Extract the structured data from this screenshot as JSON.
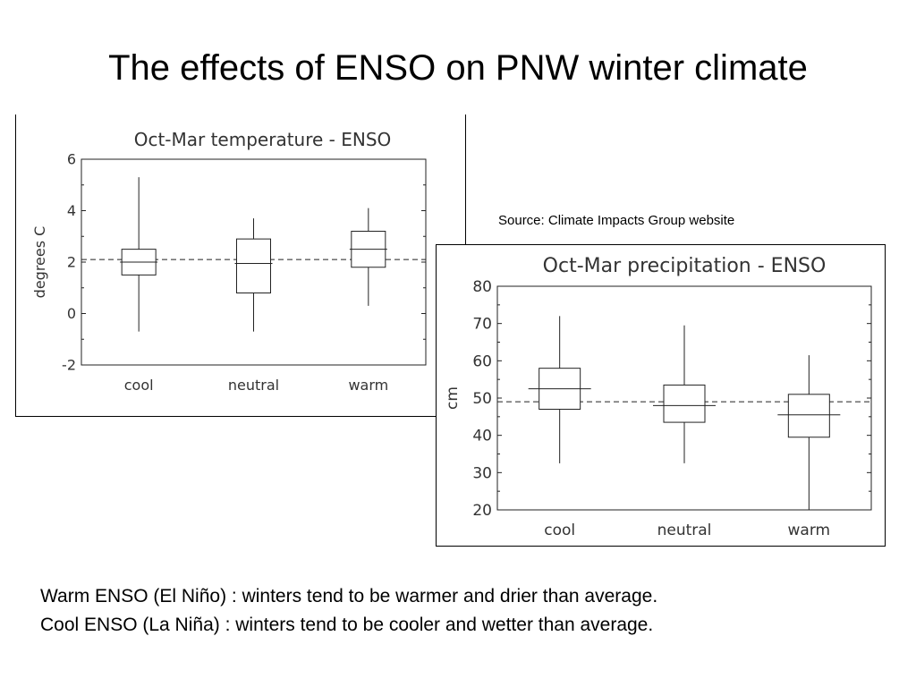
{
  "slide": {
    "title": "The effects of ENSO on PNW winter climate",
    "source_note": "Source: Climate Impacts Group website",
    "caption_lines": [
      "Warm ENSO (El Niño) : winters tend to be warmer and drier than average.",
      "Cool ENSO  (La Niña) : winters tend to be cooler and wetter than average."
    ]
  },
  "chart_data": [
    {
      "type": "boxplot",
      "title": "Oct-Mar temperature - ENSO",
      "ylabel": "degrees C",
      "categories": [
        "cool",
        "neutral",
        "warm"
      ],
      "ylim": [
        -2,
        6
      ],
      "yticks": [
        -2,
        0,
        2,
        4,
        6
      ],
      "reference_line": 2.1,
      "boxes": [
        {
          "category": "cool",
          "min": -0.7,
          "q1": 1.5,
          "median": 2.0,
          "q3": 2.5,
          "max": 5.3
        },
        {
          "category": "neutral",
          "min": -0.7,
          "q1": 0.8,
          "median": 1.95,
          "q3": 2.9,
          "max": 3.7
        },
        {
          "category": "warm",
          "min": 0.3,
          "q1": 1.8,
          "median": 2.5,
          "q3": 3.2,
          "max": 4.1
        }
      ]
    },
    {
      "type": "boxplot",
      "title": "Oct-Mar precipitation - ENSO",
      "ylabel": "cm",
      "categories": [
        "cool",
        "neutral",
        "warm"
      ],
      "ylim": [
        20,
        80
      ],
      "yticks": [
        20,
        30,
        40,
        50,
        60,
        70,
        80
      ],
      "reference_line": 49,
      "boxes": [
        {
          "category": "cool",
          "min": 32.5,
          "q1": 47,
          "median": 52.5,
          "q3": 58,
          "max": 72
        },
        {
          "category": "neutral",
          "min": 32.5,
          "q1": 43.5,
          "median": 48,
          "q3": 53.5,
          "max": 69.5
        },
        {
          "category": "warm",
          "min": 20,
          "q1": 39.5,
          "median": 45.5,
          "q3": 51,
          "max": 61.5
        }
      ]
    }
  ]
}
